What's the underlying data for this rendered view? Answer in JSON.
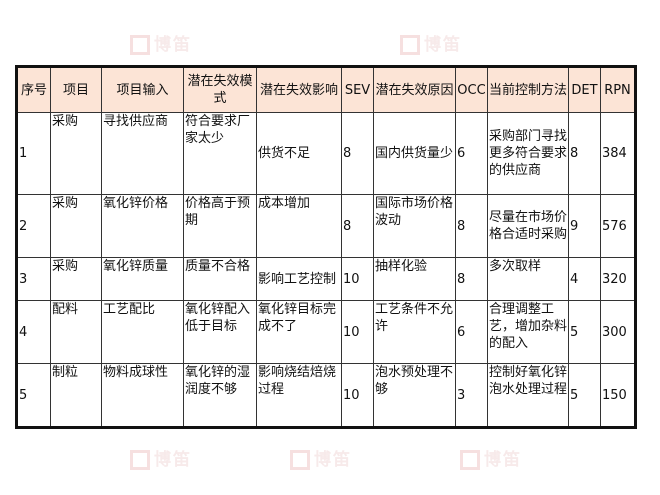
{
  "watermark": "博笛",
  "table": {
    "headers": [
      "序号",
      "项目",
      "项目输入",
      "潜在失效模式",
      "潜在失效影响",
      "SEV",
      "潜在失效原因",
      "OCC",
      "当前控制方法",
      "DET",
      "RPN"
    ],
    "rows": [
      [
        "1",
        "采购",
        "寻找供应商",
        "符合要求厂家太少",
        "供货不足",
        "8",
        "国内供货量少",
        "6",
        "采购部门寻找更多符合要求的供应商",
        "8",
        "384"
      ],
      [
        "2",
        "采购",
        "氧化锌价格",
        "价格高于预期",
        "成本增加",
        "8",
        "国际市场价格波动",
        "8",
        "尽量在市场价格合适时采购",
        "9",
        "576"
      ],
      [
        "3",
        "采购",
        "氧化锌质量",
        "质量不合格",
        "影响工艺控制",
        "10",
        "抽样化验",
        "8",
        "多次取样",
        "4",
        "320"
      ],
      [
        "4",
        "配料",
        "工艺配比",
        "氧化锌配入低于目标",
        "氧化锌目标完成不了",
        "10",
        "工艺条件不允许",
        "6",
        "合理调整工艺，增加杂料的配入",
        "5",
        "300"
      ],
      [
        "5",
        "制粒",
        "物料成球性",
        "氧化锌的湿润度不够",
        "影响烧结焙烧过程",
        "10",
        "泡水预处理不够",
        "3",
        "控制好氧化锌泡水处理过程",
        "5",
        "150"
      ]
    ]
  }
}
